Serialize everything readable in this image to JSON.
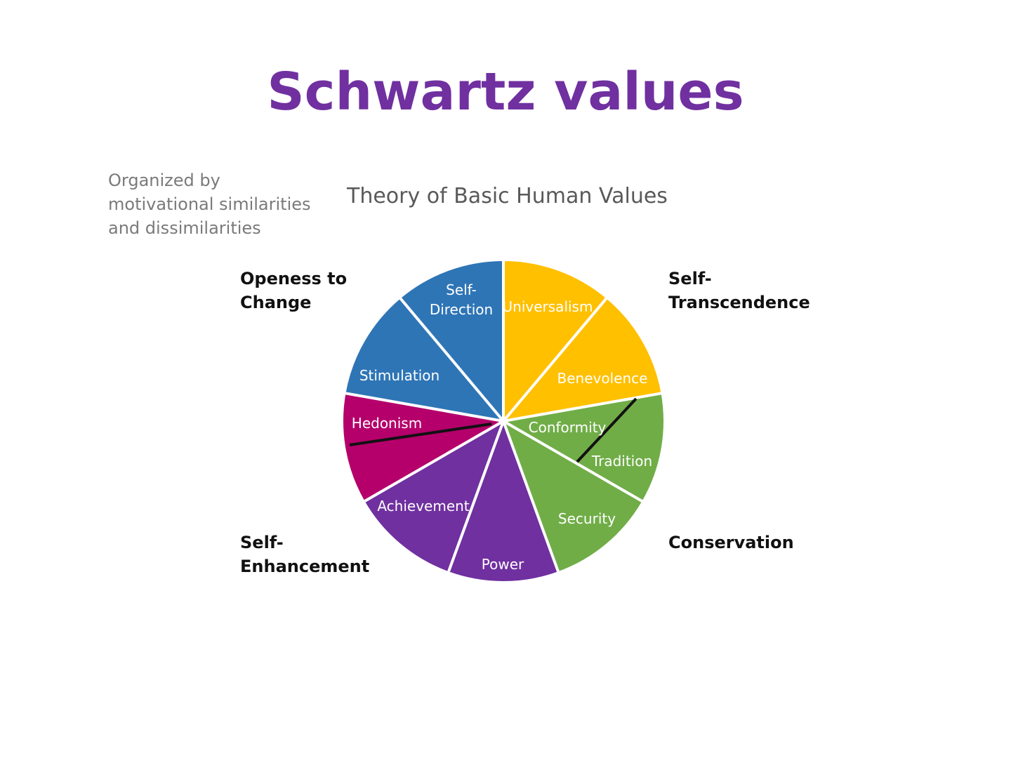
{
  "title": "Schwartz values",
  "note": "Organized by motivational similarities and dissimilarities",
  "subtitle": "Theory of Basic Human Values",
  "groups": {
    "openness": "Openess to\nChange",
    "transcendence": "Self-\nTranscendence",
    "enhancement": "Self-\nEnhancement",
    "conservation": "Conservation"
  },
  "colors": {
    "blue": "#2e75b6",
    "yellow": "#ffc000",
    "green": "#70ad47",
    "purple": "#7030a0",
    "magenta": "#b5006b",
    "title": "#7030a0"
  },
  "segments": [
    {
      "label": "Universalism",
      "color": "#ffc000"
    },
    {
      "label": "Benevolence",
      "color": "#ffc000"
    },
    {
      "label": "Conformity / Tradition",
      "color": "#70ad47",
      "sublabels": [
        "Conformity",
        "Tradition"
      ]
    },
    {
      "label": "Security",
      "color": "#70ad47"
    },
    {
      "label": "Power",
      "color": "#7030a0"
    },
    {
      "label": "Achievement",
      "color": "#7030a0"
    },
    {
      "label": "Hedonism",
      "color": "#b5006b"
    },
    {
      "label": "Stimulation",
      "color": "#2e75b6"
    },
    {
      "label": "Self-Direction",
      "color": "#2e75b6",
      "sublabels": [
        "Self-",
        "Direction"
      ]
    }
  ]
}
